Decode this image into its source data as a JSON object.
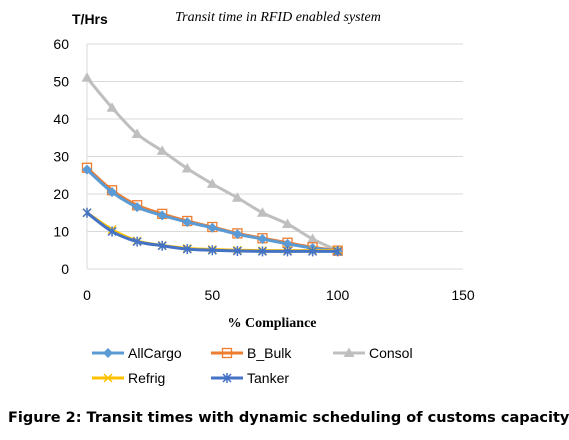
{
  "chart_data": {
    "type": "line",
    "title": "Transit time in RFID enabled system",
    "ylabel": "T/Hrs",
    "xlabel": "% Compliance",
    "xlim": [
      0,
      150
    ],
    "ylim": [
      0,
      60
    ],
    "xticks": [
      0,
      50,
      100,
      150
    ],
    "yticks": [
      0,
      10,
      20,
      30,
      40,
      50,
      60
    ],
    "grid": "horizontal",
    "legend": "bottom",
    "series": [
      {
        "name": "AllCargo",
        "color": "#5b9bd5",
        "marker": "diamond",
        "x": [
          0,
          10,
          20,
          30,
          40,
          50,
          60,
          70,
          80,
          90,
          100
        ],
        "y": [
          26.5,
          20.5,
          16.5,
          14.3,
          12.5,
          11,
          9.3,
          8,
          6.7,
          5.6,
          4.8
        ]
      },
      {
        "name": "B_Bulk",
        "color": "#ed7d31",
        "marker": "square-open",
        "x": [
          0,
          10,
          20,
          30,
          40,
          50,
          60,
          70,
          80,
          90,
          100
        ],
        "y": [
          27,
          21,
          17,
          14.7,
          12.8,
          11.2,
          9.5,
          8.2,
          7,
          5.8,
          4.9
        ]
      },
      {
        "name": "Consol",
        "color": "#bfbfbf",
        "marker": "triangle",
        "x": [
          0,
          10,
          20,
          30,
          40,
          50,
          60,
          70,
          80,
          90,
          100
        ],
        "y": [
          51,
          43,
          36,
          31.5,
          26.8,
          22.7,
          19,
          15,
          12,
          8,
          4.9
        ]
      },
      {
        "name": "Refrig",
        "color": "#ffc000",
        "marker": "x",
        "x": [
          0,
          10,
          20,
          30,
          40,
          50,
          60,
          70,
          80,
          90,
          100
        ],
        "y": [
          15,
          10.5,
          7.5,
          6.3,
          5.5,
          5.2,
          5,
          4.9,
          4.9,
          4.9,
          4.9
        ]
      },
      {
        "name": "Tanker",
        "color": "#4472c4",
        "marker": "asterisk",
        "x": [
          0,
          10,
          20,
          30,
          40,
          50,
          60,
          70,
          80,
          90,
          100
        ],
        "y": [
          15,
          10,
          7.3,
          6.2,
          5.3,
          5,
          4.8,
          4.7,
          4.7,
          4.7,
          4.7
        ]
      }
    ]
  },
  "caption": "Figure 2: Transit times with dynamic scheduling of customs capacity"
}
